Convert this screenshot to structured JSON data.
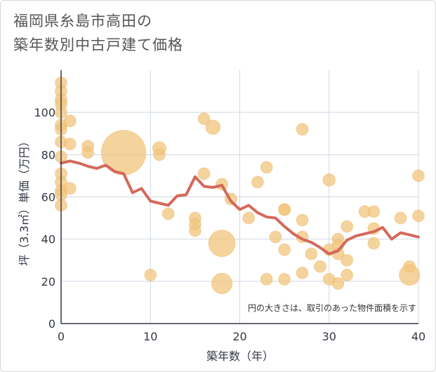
{
  "title_lines": [
    "福岡県糸島市高田の",
    "築年数別中古戸建て価格"
  ],
  "chart_data": {
    "type": "scatter",
    "title": "福岡県糸島市高田の築年数別中古戸建て価格",
    "xlabel": "築年数（年）",
    "ylabel": "坪（3.3㎡）単価（万円）",
    "xlim": [
      0,
      40
    ],
    "ylim": [
      0,
      120
    ],
    "x_ticks": [
      0,
      10,
      20,
      30,
      40
    ],
    "y_ticks": [
      0,
      20,
      40,
      60,
      80,
      100
    ],
    "grid": true,
    "annotation": "円の大きさは、取引のあった物件面積を示す",
    "colors": {
      "bubble": "#f2c47c",
      "bubble_stroke": "#e8ae55",
      "line": "#d4695a",
      "grid": "#cfd8e3",
      "axis": "#333a44"
    },
    "bubbles": [
      {
        "x": 0,
        "y": 114,
        "size": 1
      },
      {
        "x": 0,
        "y": 110,
        "size": 1
      },
      {
        "x": 0,
        "y": 106,
        "size": 1
      },
      {
        "x": 0,
        "y": 104,
        "size": 1
      },
      {
        "x": 0,
        "y": 100,
        "size": 1
      },
      {
        "x": 0,
        "y": 94,
        "size": 1
      },
      {
        "x": 0,
        "y": 92,
        "size": 1
      },
      {
        "x": 0,
        "y": 86,
        "size": 1
      },
      {
        "x": 0,
        "y": 79,
        "size": 1
      },
      {
        "x": 0,
        "y": 71,
        "size": 1
      },
      {
        "x": 0,
        "y": 67,
        "size": 1
      },
      {
        "x": 0,
        "y": 63,
        "size": 1
      },
      {
        "x": 0,
        "y": 61,
        "size": 1
      },
      {
        "x": 0,
        "y": 56,
        "size": 1
      },
      {
        "x": 1,
        "y": 96,
        "size": 1
      },
      {
        "x": 1,
        "y": 85,
        "size": 1
      },
      {
        "x": 1,
        "y": 64,
        "size": 1
      },
      {
        "x": 3,
        "y": 84,
        "size": 1
      },
      {
        "x": 3,
        "y": 81,
        "size": 1
      },
      {
        "x": 7,
        "y": 81,
        "size": 14
      },
      {
        "x": 10,
        "y": 23,
        "size": 1
      },
      {
        "x": 11,
        "y": 83,
        "size": 1.3
      },
      {
        "x": 11,
        "y": 80,
        "size": 1
      },
      {
        "x": 12,
        "y": 52,
        "size": 1
      },
      {
        "x": 15,
        "y": 50,
        "size": 1
      },
      {
        "x": 15,
        "y": 47,
        "size": 1
      },
      {
        "x": 15,
        "y": 44,
        "size": 1
      },
      {
        "x": 16,
        "y": 97,
        "size": 1
      },
      {
        "x": 16,
        "y": 71,
        "size": 1
      },
      {
        "x": 17,
        "y": 93,
        "size": 1.5
      },
      {
        "x": 18,
        "y": 66,
        "size": 1
      },
      {
        "x": 18,
        "y": 38,
        "size": 5
      },
      {
        "x": 18,
        "y": 19,
        "size": 3
      },
      {
        "x": 19,
        "y": 59,
        "size": 1
      },
      {
        "x": 21,
        "y": 50,
        "size": 1
      },
      {
        "x": 22,
        "y": 67,
        "size": 1
      },
      {
        "x": 23,
        "y": 74,
        "size": 1
      },
      {
        "x": 23,
        "y": 21,
        "size": 1
      },
      {
        "x": 24,
        "y": 41,
        "size": 1
      },
      {
        "x": 25,
        "y": 54,
        "size": 1
      },
      {
        "x": 25,
        "y": 54,
        "size": 1
      },
      {
        "x": 25,
        "y": 35,
        "size": 1
      },
      {
        "x": 25,
        "y": 21,
        "size": 1
      },
      {
        "x": 27,
        "y": 92,
        "size": 1
      },
      {
        "x": 27,
        "y": 49,
        "size": 1
      },
      {
        "x": 27,
        "y": 41,
        "size": 1
      },
      {
        "x": 27,
        "y": 24,
        "size": 1
      },
      {
        "x": 28,
        "y": 33,
        "size": 1
      },
      {
        "x": 29,
        "y": 27,
        "size": 1
      },
      {
        "x": 30,
        "y": 68,
        "size": 1.1
      },
      {
        "x": 30,
        "y": 35,
        "size": 1
      },
      {
        "x": 30,
        "y": 21,
        "size": 1
      },
      {
        "x": 31,
        "y": 40,
        "size": 1
      },
      {
        "x": 31,
        "y": 37,
        "size": 1
      },
      {
        "x": 31,
        "y": 33,
        "size": 1
      },
      {
        "x": 31,
        "y": 19,
        "size": 1
      },
      {
        "x": 32,
        "y": 46,
        "size": 1
      },
      {
        "x": 32,
        "y": 30,
        "size": 1
      },
      {
        "x": 32,
        "y": 23,
        "size": 1
      },
      {
        "x": 34,
        "y": 53,
        "size": 1
      },
      {
        "x": 35,
        "y": 53,
        "size": 1
      },
      {
        "x": 35,
        "y": 45,
        "size": 1
      },
      {
        "x": 35,
        "y": 38,
        "size": 1
      },
      {
        "x": 38,
        "y": 50,
        "size": 1
      },
      {
        "x": 39,
        "y": 27,
        "size": 1
      },
      {
        "x": 39,
        "y": 23,
        "size": 3
      },
      {
        "x": 40,
        "y": 70,
        "size": 1
      },
      {
        "x": 40,
        "y": 51,
        "size": 1
      }
    ],
    "line": {
      "x": [
        0,
        1,
        2,
        3,
        4,
        5,
        6,
        7,
        8,
        9,
        10,
        11,
        12,
        13,
        14,
        15,
        16,
        17,
        18,
        19,
        20,
        21,
        22,
        23,
        24,
        25,
        26,
        27,
        28,
        29,
        30,
        31,
        32,
        33,
        34,
        35,
        36,
        37,
        38,
        39,
        40
      ],
      "y": [
        76,
        77,
        76,
        74.5,
        73.5,
        75,
        72,
        71,
        62,
        64,
        58,
        57,
        56,
        60.5,
        61,
        69.5,
        65,
        64.5,
        65.5,
        58,
        54,
        56,
        52.5,
        50.5,
        50,
        46,
        42.5,
        40,
        38.5,
        36,
        33,
        34.5,
        39.5,
        41.5,
        42.5,
        43.5,
        45.5,
        40,
        43,
        42,
        41
      ]
    }
  }
}
